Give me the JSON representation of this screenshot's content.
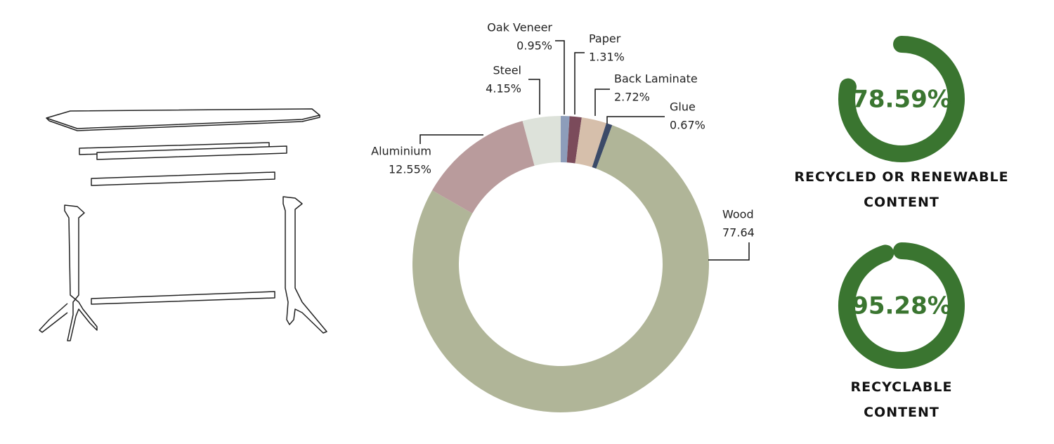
{
  "chart_data": [
    {
      "type": "donut",
      "categories": [
        "Oak Veneer",
        "Paper",
        "Back Laminate",
        "Glue",
        "Wood",
        "Aluminium",
        "Steel"
      ],
      "values": [
        0.95,
        1.31,
        2.72,
        0.67,
        77.64,
        12.55,
        4.15
      ],
      "value_labels": [
        "0.95%",
        "1.31%",
        "2.72%",
        "0.67%",
        "77.64",
        "12.55%",
        "4.15%"
      ],
      "colors": [
        "#8d9dba",
        "#7b4b5b",
        "#d6bfab",
        "#3b4a68",
        "#b0b598",
        "#b99b9c",
        "#dde2da"
      ]
    },
    {
      "type": "gauge",
      "value": 78.59,
      "value_label": "78.59%",
      "label": "RECYCLED OR RENEWABLE CONTENT",
      "ylim": [
        0,
        100
      ],
      "color": "#3a7530"
    },
    {
      "type": "gauge",
      "value": 95.28,
      "value_label": "95.28%",
      "label": "RECYCLABLE CONTENT",
      "ylim": [
        0,
        100
      ],
      "color": "#3a7530"
    }
  ]
}
